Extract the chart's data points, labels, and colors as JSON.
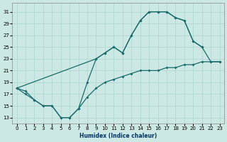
{
  "xlabel": "Humidex (Indice chaleur)",
  "bg_color": "#cce8e4",
  "grid_color": "#aad4cc",
  "line_color": "#1a6b6b",
  "xlim": [
    -0.5,
    23.5
  ],
  "ylim": [
    12,
    32.5
  ],
  "xticks": [
    0,
    1,
    2,
    3,
    4,
    5,
    6,
    7,
    8,
    9,
    10,
    11,
    12,
    13,
    14,
    15,
    16,
    17,
    18,
    19,
    20,
    21,
    22,
    23
  ],
  "yticks": [
    13,
    15,
    17,
    19,
    21,
    23,
    25,
    27,
    29,
    31
  ],
  "line1_x": [
    0,
    1,
    2,
    3,
    4,
    5,
    6,
    7,
    8,
    9,
    10,
    11,
    12,
    13,
    14,
    15,
    16,
    17,
    18,
    19,
    20,
    21
  ],
  "line1_y": [
    18,
    17,
    16,
    15,
    15,
    13,
    13,
    14.5,
    19,
    23,
    24,
    25,
    24,
    27,
    29.5,
    31,
    31,
    31,
    30,
    29.5,
    26,
    25
  ],
  "line2_x": [
    0,
    1,
    2,
    3,
    4,
    5,
    6,
    7,
    8,
    9,
    10,
    11,
    12,
    13,
    14,
    15,
    16,
    17,
    18,
    19,
    20,
    21,
    22,
    23
  ],
  "line2_y": [
    18,
    17.5,
    16,
    15,
    15,
    13,
    13,
    14.5,
    16.5,
    18,
    19,
    19.5,
    20,
    20.5,
    21,
    21,
    21,
    21.5,
    21.5,
    22,
    22,
    22.5,
    22.5,
    22.5
  ],
  "line3_x": [
    0,
    9,
    10,
    11,
    12,
    13,
    14,
    15,
    16,
    17,
    18,
    19,
    20,
    21,
    22,
    23
  ],
  "line3_y": [
    18,
    23,
    24,
    25,
    24,
    27,
    29.5,
    31,
    31,
    31,
    30,
    29.5,
    26,
    25,
    22.5,
    22.5
  ]
}
